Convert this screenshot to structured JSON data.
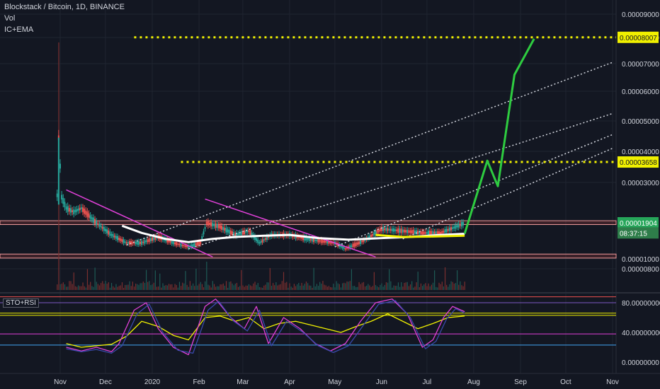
{
  "header": {
    "symbol_title": "Blockstack / Bitcoin, 1D, BINANCE",
    "vol_label": "Vol",
    "indicator_label": "IC+EMA"
  },
  "oscillator": {
    "label": "STO+RSI"
  },
  "colors": {
    "background": "#131722",
    "bull": "#26a69a",
    "bear": "#ef5350",
    "projection": "#2ecc40",
    "level": "#f0f000",
    "trendline": "#e040d8",
    "ema": "#ffffff",
    "zone": "#ef9a9a"
  },
  "chart_data": [
    {
      "type": "line",
      "title": "Blockstack / Bitcoin, 1D, BINANCE",
      "ylim": [
        1e-06,
        9.2e-06
      ],
      "y_ticks": [
        "0.00009000",
        "0.00008000",
        "0.00007000",
        "0.00006000",
        "0.00005000",
        "0.00004000",
        "0.00003000",
        "0.00001000",
        "0.00000800"
      ],
      "y_tick_values": [
        9e-05,
        8e-05,
        7e-05,
        6e-05,
        5e-05,
        4e-05,
        3e-05,
        1e-05,
        8e-06
      ],
      "x_tick_labels": [
        "Nov",
        "Dec",
        "2020",
        "Feb",
        "Mar",
        "Apr",
        "May",
        "Jun",
        "Jul",
        "Aug",
        "Sep",
        "Oct",
        "Nov"
      ],
      "x_tick_dates": [
        "2019-11-01",
        "2019-12-01",
        "2020-01-01",
        "2020-02-01",
        "2020-03-01",
        "2020-04-01",
        "2020-05-01",
        "2020-06-01",
        "2020-07-01",
        "2020-08-01",
        "2020-09-01",
        "2020-10-01",
        "2020-11-01"
      ],
      "price_labels": [
        {
          "text": "0.00008007",
          "value": 8.007e-05,
          "style": "level"
        },
        {
          "text": "0.00003658",
          "value": 3.658e-05,
          "style": "level"
        },
        {
          "text": "0.00001904",
          "value": 1.904e-05,
          "style": "last"
        },
        {
          "text": "08:37:15",
          "value": 1.65e-05,
          "style": "countdown"
        }
      ],
      "price_path": [
        [
          "2019-10-30",
          2.65e-05
        ],
        [
          "2019-10-31",
          4.45e-05
        ],
        [
          "2019-11-02",
          2.6e-05
        ],
        [
          "2019-11-05",
          2.3e-05
        ],
        [
          "2019-11-10",
          2.2e-05
        ],
        [
          "2019-11-15",
          2.3e-05
        ],
        [
          "2019-11-25",
          1.9e-05
        ],
        [
          "2019-12-05",
          1.6e-05
        ],
        [
          "2019-12-15",
          1.4e-05
        ],
        [
          "2019-12-25",
          1.4e-05
        ],
        [
          "2020-01-05",
          1.55e-05
        ],
        [
          "2020-01-15",
          1.4e-05
        ],
        [
          "2020-01-25",
          1.3e-05
        ],
        [
          "2020-02-02",
          1.4e-05
        ],
        [
          "2020-02-06",
          1.9e-05
        ],
        [
          "2020-02-15",
          1.8e-05
        ],
        [
          "2020-02-25",
          1.6e-05
        ],
        [
          "2020-03-05",
          1.7e-05
        ],
        [
          "2020-03-12",
          1.4e-05
        ],
        [
          "2020-03-20",
          1.6e-05
        ],
        [
          "2020-04-01",
          1.6e-05
        ],
        [
          "2020-04-15",
          1.48e-05
        ],
        [
          "2020-05-01",
          1.4e-05
        ],
        [
          "2020-05-08",
          1.25e-05
        ],
        [
          "2020-05-20",
          1.45e-05
        ],
        [
          "2020-06-01",
          1.75e-05
        ],
        [
          "2020-06-15",
          1.7e-05
        ],
        [
          "2020-06-28",
          1.65e-05
        ],
        [
          "2020-07-10",
          1.65e-05
        ],
        [
          "2020-07-20",
          1.8e-05
        ],
        [
          "2020-07-26",
          1.9e-05
        ]
      ],
      "ema_path": [
        [
          "2019-12-12",
          1.83e-05
        ],
        [
          "2019-12-25",
          1.65e-05
        ],
        [
          "2020-01-10",
          1.5e-05
        ],
        [
          "2020-01-25",
          1.42e-05
        ],
        [
          "2020-02-10",
          1.5e-05
        ],
        [
          "2020-02-25",
          1.55e-05
        ],
        [
          "2020-03-15",
          1.58e-05
        ],
        [
          "2020-04-01",
          1.6e-05
        ],
        [
          "2020-04-20",
          1.52e-05
        ],
        [
          "2020-05-10",
          1.48e-05
        ],
        [
          "2020-06-01",
          1.52e-05
        ],
        [
          "2020-06-20",
          1.55e-05
        ],
        [
          "2020-07-10",
          1.6e-05
        ],
        [
          "2020-07-26",
          1.63e-05
        ]
      ],
      "yellow_base": [
        [
          "2020-05-28",
          1.6e-05
        ],
        [
          "2020-06-15",
          1.55e-05
        ],
        [
          "2020-07-05",
          1.56e-05
        ],
        [
          "2020-07-26",
          1.58e-05
        ]
      ],
      "projection": [
        [
          "2020-07-26",
          1.63e-05
        ],
        [
          "2020-08-10",
          3.7e-05
        ],
        [
          "2020-08-17",
          2.9e-05
        ],
        [
          "2020-08-28",
          6.6e-05
        ],
        [
          "2020-09-10",
          7.95e-05
        ]
      ],
      "horizontal_levels": [
        {
          "value": 8.007e-05,
          "from": "2019-12-20"
        },
        {
          "value": 3.658e-05,
          "from": "2020-01-20"
        }
      ],
      "zones": [
        {
          "low": 1.86e-05,
          "high": 1.96e-05
        },
        {
          "low": 1.02e-05,
          "high": 1.12e-05
        }
      ],
      "trendlines": [
        {
          "from": [
            "2019-11-05",
            2.8e-05
          ],
          "to": [
            "2020-02-10",
            1.05e-05
          ]
        },
        {
          "from": [
            "2020-02-05",
            2.55e-05
          ],
          "to": [
            "2020-05-28",
            1.05e-05
          ]
        }
      ],
      "channel_lines": [
        {
          "from": [
            "2019-12-15",
            1.35e-05
          ],
          "to": [
            "2020-11-01",
            7.05e-05
          ]
        },
        {
          "from": [
            "2020-01-25",
            1.25e-05
          ],
          "to": [
            "2020-11-01",
            5.25e-05
          ]
        },
        {
          "from": [
            "2020-05-01",
            1.3e-05
          ],
          "to": [
            "2020-11-01",
            4.55e-05
          ]
        },
        {
          "from": [
            "2020-06-15",
            1.5e-05
          ],
          "to": [
            "2020-11-01",
            4.1e-05
          ]
        }
      ]
    },
    {
      "type": "line",
      "title": "STO+RSI",
      "ylim": [
        0,
        90
      ],
      "y_ticks": [
        "80.00000000",
        "40.00000000",
        "0.00000000"
      ],
      "y_tick_values": [
        80,
        40,
        0
      ],
      "levels": [
        {
          "value": 88,
          "color": "#ef5350"
        },
        {
          "value": 80,
          "color": "#7e57c2"
        },
        {
          "value": 66,
          "color": "#f0f000"
        },
        {
          "value": 63,
          "color": "#f0f000"
        },
        {
          "value": 38,
          "color": "#e040d8"
        },
        {
          "value": 23,
          "color": "#42a5f5"
        }
      ],
      "series": [
        {
          "color": "#f0f000",
          "values": [
            [
              "2019-11-05",
              25
            ],
            [
              "2019-11-15",
              20
            ],
            [
              "2019-11-25",
              22
            ],
            [
              "2019-12-05",
              24
            ],
            [
              "2019-12-15",
              35
            ],
            [
              "2019-12-25",
              55
            ],
            [
              "2020-01-05",
              48
            ],
            [
              "2020-01-15",
              36
            ],
            [
              "2020-01-25",
              30
            ],
            [
              "2020-02-05",
              60
            ],
            [
              "2020-02-15",
              62
            ],
            [
              "2020-02-25",
              55
            ],
            [
              "2020-03-05",
              60
            ],
            [
              "2020-03-15",
              45
            ],
            [
              "2020-03-25",
              52
            ],
            [
              "2020-04-05",
              55
            ],
            [
              "2020-04-15",
              50
            ],
            [
              "2020-04-25",
              45
            ],
            [
              "2020-05-05",
              40
            ],
            [
              "2020-05-15",
              48
            ],
            [
              "2020-05-25",
              55
            ],
            [
              "2020-06-05",
              65
            ],
            [
              "2020-06-15",
              55
            ],
            [
              "2020-06-25",
              45
            ],
            [
              "2020-07-05",
              52
            ],
            [
              "2020-07-15",
              60
            ],
            [
              "2020-07-26",
              62
            ]
          ]
        },
        {
          "color": "#e040d8",
          "values": [
            [
              "2019-11-05",
              20
            ],
            [
              "2019-11-15",
              15
            ],
            [
              "2019-11-25",
              20
            ],
            [
              "2019-12-05",
              14
            ],
            [
              "2019-12-10",
              25
            ],
            [
              "2019-12-20",
              70
            ],
            [
              "2019-12-28",
              80
            ],
            [
              "2020-01-05",
              45
            ],
            [
              "2020-01-15",
              20
            ],
            [
              "2020-01-25",
              10
            ],
            [
              "2020-02-05",
              75
            ],
            [
              "2020-02-12",
              85
            ],
            [
              "2020-02-22",
              60
            ],
            [
              "2020-03-02",
              45
            ],
            [
              "2020-03-10",
              75
            ],
            [
              "2020-03-18",
              25
            ],
            [
              "2020-03-28",
              60
            ],
            [
              "2020-04-08",
              45
            ],
            [
              "2020-04-18",
              25
            ],
            [
              "2020-04-28",
              15
            ],
            [
              "2020-05-08",
              25
            ],
            [
              "2020-05-18",
              55
            ],
            [
              "2020-05-28",
              80
            ],
            [
              "2020-06-08",
              85
            ],
            [
              "2020-06-18",
              65
            ],
            [
              "2020-06-28",
              20
            ],
            [
              "2020-07-05",
              30
            ],
            [
              "2020-07-12",
              60
            ],
            [
              "2020-07-18",
              75
            ],
            [
              "2020-07-26",
              68
            ]
          ]
        },
        {
          "color": "#3949ab",
          "values": [
            [
              "2019-11-05",
              18
            ],
            [
              "2019-11-15",
              14
            ],
            [
              "2019-11-25",
              17
            ],
            [
              "2019-12-05",
              12
            ],
            [
              "2019-12-12",
              22
            ],
            [
              "2019-12-22",
              65
            ],
            [
              "2019-12-30",
              78
            ],
            [
              "2020-01-08",
              40
            ],
            [
              "2020-01-18",
              16
            ],
            [
              "2020-01-28",
              12
            ],
            [
              "2020-02-07",
              70
            ],
            [
              "2020-02-14",
              82
            ],
            [
              "2020-02-24",
              55
            ],
            [
              "2020-03-04",
              42
            ],
            [
              "2020-03-12",
              70
            ],
            [
              "2020-03-20",
              22
            ],
            [
              "2020-03-30",
              55
            ],
            [
              "2020-04-10",
              40
            ],
            [
              "2020-04-20",
              22
            ],
            [
              "2020-04-30",
              13
            ],
            [
              "2020-05-10",
              22
            ],
            [
              "2020-05-20",
              50
            ],
            [
              "2020-05-30",
              78
            ],
            [
              "2020-06-10",
              83
            ],
            [
              "2020-06-20",
              60
            ],
            [
              "2020-06-30",
              18
            ],
            [
              "2020-07-07",
              28
            ],
            [
              "2020-07-14",
              58
            ],
            [
              "2020-07-20",
              72
            ],
            [
              "2020-07-26",
              66
            ]
          ]
        }
      ]
    }
  ]
}
